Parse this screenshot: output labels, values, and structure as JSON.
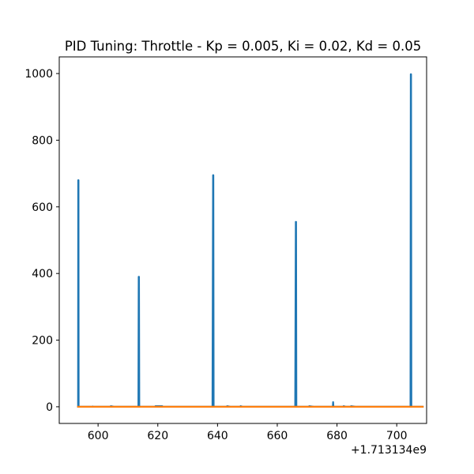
{
  "chart_data": {
    "type": "line",
    "title": "PID Tuning: Throttle - Kp = 0.005, Ki = 0.02, Kd = 0.05",
    "xlabel": "",
    "ylabel": "",
    "x_offset_text": "+1.713134e9",
    "xlim": [
      587,
      710
    ],
    "ylim": [
      -50,
      1050
    ],
    "x_ticks": [
      600,
      620,
      640,
      660,
      680,
      700
    ],
    "y_ticks": [
      0,
      200,
      400,
      600,
      800,
      1000
    ],
    "grid": false,
    "legend": "none",
    "series": [
      {
        "color": "#1f77b4",
        "points": [
          [
            593.0,
            0
          ],
          [
            593.3,
            0
          ],
          [
            593.35,
            680
          ],
          [
            593.45,
            680
          ],
          [
            593.5,
            0
          ],
          [
            598.0,
            0
          ],
          [
            598.2,
            1
          ],
          [
            598.4,
            0
          ],
          [
            604.0,
            0
          ],
          [
            604.3,
            2
          ],
          [
            605.5,
            0
          ],
          [
            613.5,
            0
          ],
          [
            613.6,
            390
          ],
          [
            613.7,
            390
          ],
          [
            613.8,
            0
          ],
          [
            619.0,
            0
          ],
          [
            619.2,
            2
          ],
          [
            621.5,
            2
          ],
          [
            621.7,
            0
          ],
          [
            638.3,
            0
          ],
          [
            638.5,
            695
          ],
          [
            638.6,
            695
          ],
          [
            638.7,
            0
          ],
          [
            643.0,
            0
          ],
          [
            643.2,
            2
          ],
          [
            644.5,
            0
          ],
          [
            647.5,
            0
          ],
          [
            647.7,
            2
          ],
          [
            648.5,
            0
          ],
          [
            666.0,
            0
          ],
          [
            666.2,
            555
          ],
          [
            666.3,
            555
          ],
          [
            666.4,
            0
          ],
          [
            670.5,
            0
          ],
          [
            670.7,
            2
          ],
          [
            672.5,
            0
          ],
          [
            678.6,
            0
          ],
          [
            678.7,
            14
          ],
          [
            678.8,
            0
          ],
          [
            682.0,
            0
          ],
          [
            682.2,
            2
          ],
          [
            683.0,
            0
          ],
          [
            684.5,
            0
          ],
          [
            684.7,
            2
          ],
          [
            686.5,
            0
          ],
          [
            704.6,
            0
          ],
          [
            704.7,
            998
          ],
          [
            704.8,
            998
          ],
          [
            704.9,
            0
          ],
          [
            709.0,
            0
          ]
        ]
      },
      {
        "color": "#ff7f0e",
        "points": [
          [
            593.0,
            0
          ],
          [
            709.0,
            0
          ]
        ]
      }
    ]
  }
}
